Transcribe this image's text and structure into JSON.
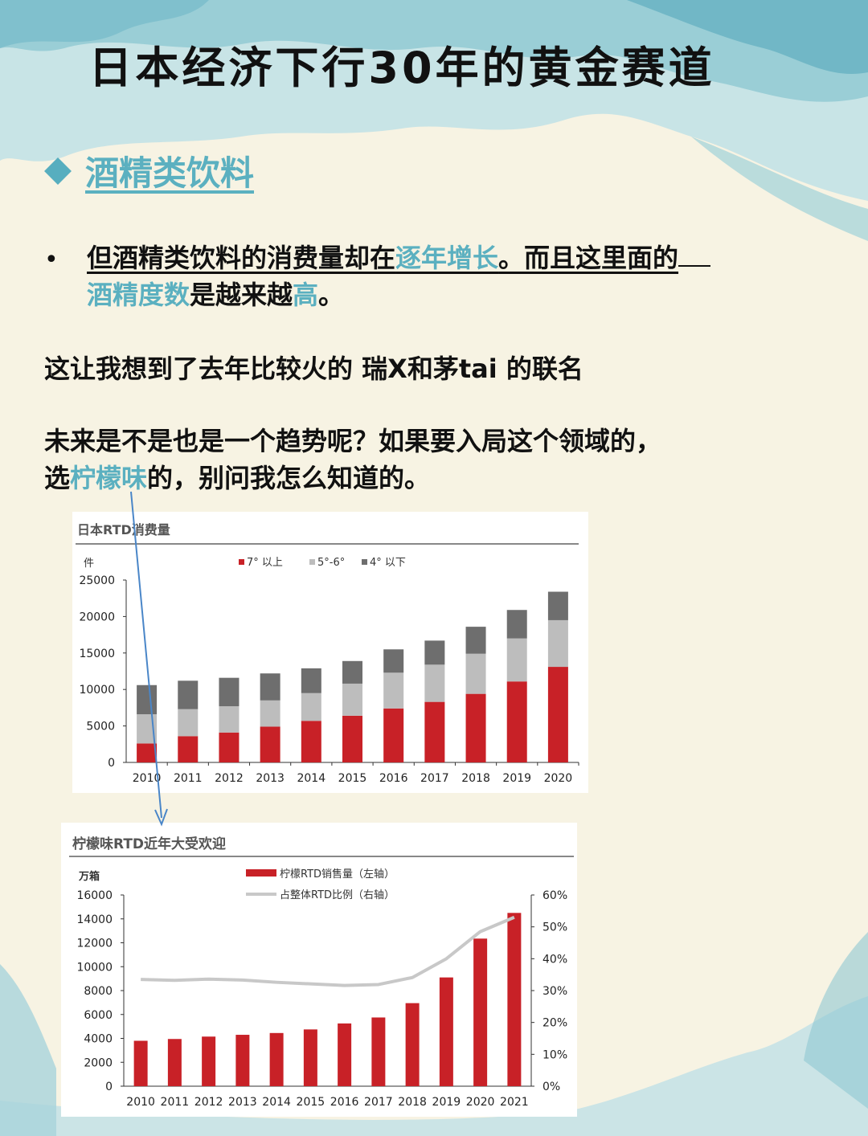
{
  "title": "日本经济下行30年的黄金赛道",
  "section_title": "酒精类饮料",
  "bullet": "•",
  "para1": {
    "a": "但酒精类饮料的消费量却在",
    "b": "逐年增长",
    "c": "。而且这里面的",
    "d": "酒精度数",
    "e": "是越来越",
    "f": "高",
    "g": "。"
  },
  "para2": "这让我想到了去年比较火的 瑞X和茅tai 的联名",
  "para3": {
    "a": "未来是不是也是一个趋势呢？如果要入局这个领域的，",
    "b": "选",
    "c": "柠檬味",
    "d": "的，别问我怎么知道的。"
  },
  "colors": {
    "accent": "#5bb0c0",
    "red": "#c82127",
    "mid_gray": "#bdbdbd",
    "dark_gray": "#6e6e6e",
    "line_gray": "#c8c8c8"
  },
  "chart_data": [
    {
      "type": "bar",
      "stacked": true,
      "title": "日本RTD消费量",
      "ylabel": "件",
      "categories": [
        "2010",
        "2011",
        "2012",
        "2013",
        "2014",
        "2015",
        "2016",
        "2017",
        "2018",
        "2019",
        "2020"
      ],
      "ylim": [
        0,
        25000
      ],
      "yticks": [
        0,
        5000,
        10000,
        15000,
        20000,
        25000
      ],
      "legend_position": "top",
      "series": [
        {
          "name": "7° 以上",
          "color": "#c82127",
          "values": [
            2600,
            3600,
            4100,
            4900,
            5700,
            6400,
            7400,
            8300,
            9400,
            11100,
            13100
          ]
        },
        {
          "name": "5°-6°",
          "color": "#bdbdbd",
          "values": [
            4000,
            3700,
            3600,
            3600,
            3800,
            4400,
            4900,
            5100,
            5500,
            5900,
            6400
          ]
        },
        {
          "name": "4° 以下",
          "color": "#6e6e6e",
          "values": [
            4000,
            3900,
            3900,
            3700,
            3400,
            3100,
            3200,
            3300,
            3700,
            3900,
            3900
          ]
        }
      ]
    },
    {
      "type": "bar+line",
      "title": "柠檬味RTD近年大受欢迎",
      "ylabel_left": "万箱",
      "categories": [
        "2010",
        "2011",
        "2012",
        "2013",
        "2014",
        "2015",
        "2016",
        "2017",
        "2018",
        "2019",
        "2020",
        "2021"
      ],
      "ylim_left": [
        0,
        16000
      ],
      "yticks_left": [
        0,
        2000,
        4000,
        6000,
        8000,
        10000,
        12000,
        14000,
        16000
      ],
      "ylim_right": [
        0,
        60
      ],
      "yticks_right": [
        "0%",
        "10%",
        "20%",
        "30%",
        "40%",
        "50%",
        "60%"
      ],
      "legend_position": "top",
      "series": [
        {
          "name": "柠檬RTD销售量（左轴）",
          "kind": "bar",
          "axis": "left",
          "color": "#c82127",
          "values": [
            3800,
            3950,
            4150,
            4300,
            4450,
            4750,
            5250,
            5750,
            6950,
            9100,
            12350,
            14500
          ]
        },
        {
          "name": "占整体RTD比例（右轴）",
          "kind": "line",
          "axis": "right",
          "color": "#c8c8c8",
          "values": [
            33.5,
            33.2,
            33.6,
            33.3,
            32.6,
            32.1,
            31.6,
            31.9,
            34.1,
            40.0,
            48.5,
            53.0
          ]
        }
      ]
    }
  ]
}
